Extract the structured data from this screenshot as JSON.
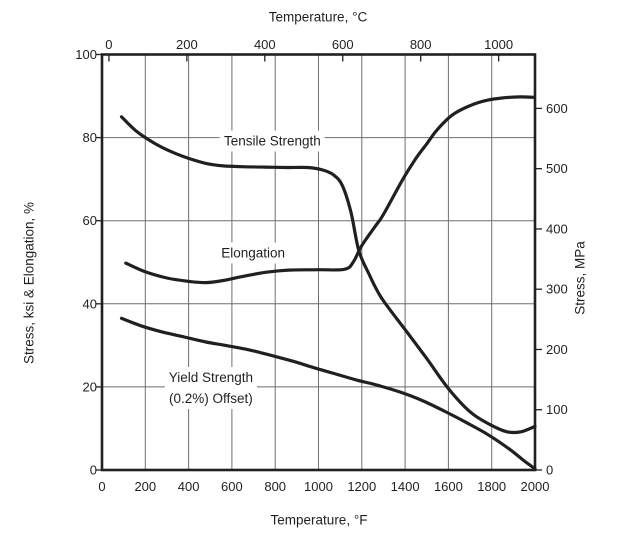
{
  "figure": {
    "background": "#ffffff",
    "curve_color": "#231f20",
    "grid_color": "#6d6e71",
    "border_color": "#231f20",
    "text_color": "#231f20"
  },
  "chart_data": {
    "type": "line",
    "title": "",
    "x_bottom": {
      "label": "Temperature, °F",
      "min": 0,
      "max": 2000,
      "ticks": [
        0,
        200,
        400,
        600,
        800,
        1000,
        1200,
        1400,
        1600,
        1800,
        2000
      ]
    },
    "x_top": {
      "label": "Temperature, °C",
      "ticks": [
        0,
        200,
        400,
        600,
        800,
        1000
      ],
      "c_to_f_scale": 1.8,
      "c_to_f_offset": 32
    },
    "y_left": {
      "label": "Stress, ksi & Elongation, %",
      "min": 0,
      "max": 100,
      "ticks": [
        0,
        20,
        40,
        60,
        80,
        100
      ]
    },
    "y_right": {
      "label": "Stress, MPa",
      "ticks": [
        0,
        100,
        200,
        300,
        400,
        500,
        600
      ],
      "mpa_to_ksi": 0.145038
    },
    "grid": {
      "vertical_step_f": 200,
      "horizontal_step_ksi": 20,
      "grid_on": true
    },
    "legend": "inline curve labels",
    "series": [
      {
        "name": "Tensile Strength",
        "label": {
          "text": "Tensile Strength",
          "x_f": 787,
          "y_ksi": 79.3
        },
        "points": [
          [
            90,
            85
          ],
          [
            160,
            81.5
          ],
          [
            240,
            78.7
          ],
          [
            320,
            76.6
          ],
          [
            400,
            75
          ],
          [
            480,
            73.8
          ],
          [
            560,
            73.2
          ],
          [
            650,
            73
          ],
          [
            750,
            72.9
          ],
          [
            850,
            72.8
          ],
          [
            950,
            72.8
          ],
          [
            1020,
            72.2
          ],
          [
            1070,
            71
          ],
          [
            1110,
            68.5
          ],
          [
            1150,
            62
          ],
          [
            1185,
            53
          ],
          [
            1230,
            47.5
          ],
          [
            1290,
            41.5
          ],
          [
            1400,
            33.8
          ],
          [
            1500,
            26.8
          ],
          [
            1600,
            19.6
          ],
          [
            1700,
            14
          ],
          [
            1790,
            11
          ],
          [
            1870,
            9.2
          ],
          [
            1935,
            9.2
          ],
          [
            2000,
            10.5
          ]
        ]
      },
      {
        "name": "Elongation",
        "label": {
          "text": "Elongation",
          "x_f": 698,
          "y_ksi": 52.2
        },
        "points": [
          [
            110,
            49.8
          ],
          [
            200,
            47.7
          ],
          [
            300,
            46.2
          ],
          [
            400,
            45.4
          ],
          [
            480,
            45.1
          ],
          [
            560,
            45.6
          ],
          [
            650,
            46.6
          ],
          [
            760,
            47.6
          ],
          [
            860,
            48.1
          ],
          [
            1000,
            48.2
          ],
          [
            1120,
            48.3
          ],
          [
            1160,
            50
          ],
          [
            1200,
            54
          ],
          [
            1260,
            58.5
          ],
          [
            1300,
            61.5
          ],
          [
            1390,
            70
          ],
          [
            1450,
            75
          ],
          [
            1500,
            78.5
          ],
          [
            1550,
            82
          ],
          [
            1620,
            85.5
          ],
          [
            1700,
            87.7
          ],
          [
            1780,
            89
          ],
          [
            1860,
            89.6
          ],
          [
            1930,
            89.8
          ],
          [
            1995,
            89.7
          ]
        ]
      },
      {
        "name": "Yield Strength (0.2%) Offset)",
        "label": {
          "text_line1": "Yield Strength",
          "text_line2": "(0.2%) Offset)",
          "x_f": 503,
          "y_ksi": 19.8
        },
        "points": [
          [
            90,
            36.5
          ],
          [
            180,
            34.7
          ],
          [
            280,
            33.2
          ],
          [
            380,
            32
          ],
          [
            480,
            30.8
          ],
          [
            580,
            29.9
          ],
          [
            680,
            28.9
          ],
          [
            780,
            27.6
          ],
          [
            880,
            26.2
          ],
          [
            980,
            24.6
          ],
          [
            1080,
            23.1
          ],
          [
            1180,
            21.6
          ],
          [
            1280,
            20.3
          ],
          [
            1380,
            18.7
          ],
          [
            1480,
            16.7
          ],
          [
            1580,
            14.2
          ],
          [
            1680,
            11.5
          ],
          [
            1780,
            8.6
          ],
          [
            1880,
            5.1
          ],
          [
            1950,
            2.2
          ],
          [
            2000,
            0.3
          ]
        ]
      }
    ]
  }
}
